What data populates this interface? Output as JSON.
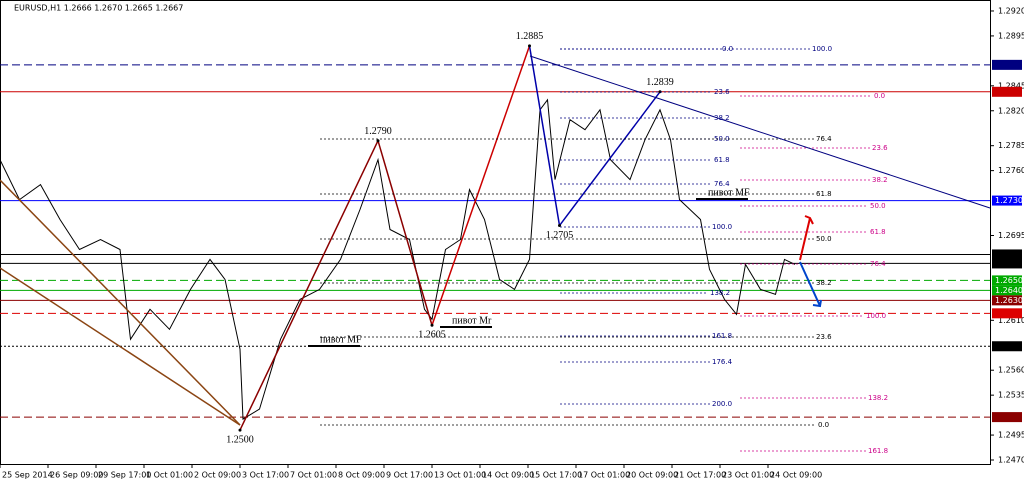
{
  "chart_data": {
    "type": "line",
    "title": "EURUSD,H1  1.2666 1.2670 1.2665 1.2667",
    "xlim": [
      0,
      660
    ],
    "ylim": [
      1.2466,
      1.2931
    ],
    "xticks": [
      {
        "value": 0,
        "label": "25 Sep 2014"
      },
      {
        "value": 32,
        "label": "26 Sep 09:00"
      },
      {
        "value": 64,
        "label": "29 Sep 17:00"
      },
      {
        "value": 96,
        "label": "1 Oct 01:00"
      },
      {
        "value": 128,
        "label": "2 Oct 09:00"
      },
      {
        "value": 160,
        "label": "3 Oct 17:00"
      },
      {
        "value": 192,
        "label": "7 Oct 01:00"
      },
      {
        "value": 224,
        "label": "8 Oct 09:00"
      },
      {
        "value": 256,
        "label": "9 Oct 17:00"
      },
      {
        "value": 288,
        "label": "13 Oct 01:00"
      },
      {
        "value": 320,
        "label": "14 Oct 09:00"
      },
      {
        "value": 352,
        "label": "15 Oct 17:00"
      },
      {
        "value": 384,
        "label": "17 Oct 01:00"
      },
      {
        "value": 416,
        "label": "20 Oct 09:00"
      },
      {
        "value": 448,
        "label": "21 Oct 17:00"
      },
      {
        "value": 480,
        "label": "23 Oct 01:00"
      },
      {
        "value": 512,
        "label": "24 Oct 09:00"
      }
    ],
    "yticks": [
      {
        "value": 1.292,
        "label": "1.2920"
      },
      1.2895,
      1.2845,
      {
        "value": 1.282,
        "label": "1.2820"
      },
      1.2785,
      {
        "value": 1.276,
        "label": "1.2760"
      },
      1.2695,
      {
        "value": 1.261,
        "label": "1.2610"
      },
      {
        "value": 1.256,
        "label": "1.2560"
      },
      1.2535,
      1.2495,
      {
        "value": 1.247,
        "label": "1.2470"
      }
    ],
    "series": [
      {
        "name": "EURUSD",
        "color": "#000000",
        "x": [
          0,
          13,
          27,
          40,
          53,
          67,
          80,
          87,
          100,
          113,
          127,
          140,
          150,
          160,
          162,
          173,
          187,
          200,
          213,
          227,
          240,
          252,
          260,
          273,
          283,
          288,
          297,
          307,
          313,
          323,
          333,
          343,
          353,
          360,
          365,
          370,
          380,
          390,
          400,
          407,
          420,
          430,
          440,
          447,
          453,
          467,
          473,
          483,
          491,
          497,
          507,
          517,
          523,
          530
        ],
        "values": [
          1.2771,
          1.2731,
          1.2746,
          1.2711,
          1.2681,
          1.2691,
          1.2681,
          1.2591,
          1.2621,
          1.2601,
          1.2641,
          1.2671,
          1.2651,
          1.2581,
          1.2511,
          1.2521,
          1.2591,
          1.2631,
          1.2641,
          1.2671,
          1.2721,
          1.2771,
          1.2701,
          1.2691,
          1.2621,
          1.2611,
          1.2681,
          1.2691,
          1.2741,
          1.2711,
          1.2651,
          1.2641,
          1.2671,
          1.2821,
          1.2831,
          1.2751,
          1.2811,
          1.2801,
          1.2821,
          1.2771,
          1.2751,
          1.2791,
          1.2821,
          1.2791,
          1.2731,
          1.2711,
          1.2661,
          1.2631,
          1.2616,
          1.2666,
          1.2641,
          1.2636,
          1.2671,
          1.2666
        ]
      }
    ],
    "levels": [
      {
        "value": 1.2866,
        "color": "#000080",
        "style": "dashed"
      },
      {
        "value": 1.2839,
        "color": "#cc0000",
        "style": "solid"
      },
      {
        "value": 1.273,
        "label": "1.2730",
        "color": "#0000ff",
        "style": "solid"
      },
      {
        "value": 1.2676,
        "color": "#000000",
        "style": "solid"
      },
      {
        "value": 1.2667,
        "color": "#000000",
        "style": "solid"
      },
      {
        "value": 1.265,
        "label": "1.2650",
        "color": "#00aa00",
        "style": "dashed"
      },
      {
        "value": 1.264,
        "label": "1.2640",
        "color": "#00aa00",
        "style": "solid"
      },
      {
        "value": 1.263,
        "label": "1.2630",
        "color": "#8b0000",
        "style": "solid"
      },
      {
        "value": 1.2617,
        "color": "#dd0000",
        "style": "dashed"
      },
      {
        "value": 1.2584,
        "color": "#000000",
        "style": "dotted"
      },
      {
        "value": 1.2513,
        "color": "#8b0000",
        "style": "dashed"
      }
    ],
    "swings": [
      {
        "x": 160,
        "value": 1.25,
        "label": "1.2500"
      },
      {
        "x": 252,
        "value": 1.279,
        "label": "1.2790"
      },
      {
        "x": 288,
        "value": 1.2605
      },
      {
        "x": 353,
        "value": 1.2885
      },
      {
        "x": 373,
        "value": 1.2705
      },
      {
        "x": 440,
        "value": 1.2839
      }
    ],
    "annotations": [
      "пивот MF",
      "пивот Mr",
      "пивот MF"
    ],
    "fib_labels": [
      "0.0",
      "100.0",
      "23.6",
      "38.2",
      "50.0",
      "61.8",
      "76.4",
      "100.0",
      "138.2",
      "161.8",
      "176.4",
      "200.0",
      "0.0",
      "23.6",
      "38.2",
      "50.0",
      "61.8",
      "76.4",
      "100.0",
      "138.2",
      "161.8",
      "76.4",
      "61.8",
      "50.0",
      "38.2",
      "23.6",
      "0.0"
    ]
  }
}
